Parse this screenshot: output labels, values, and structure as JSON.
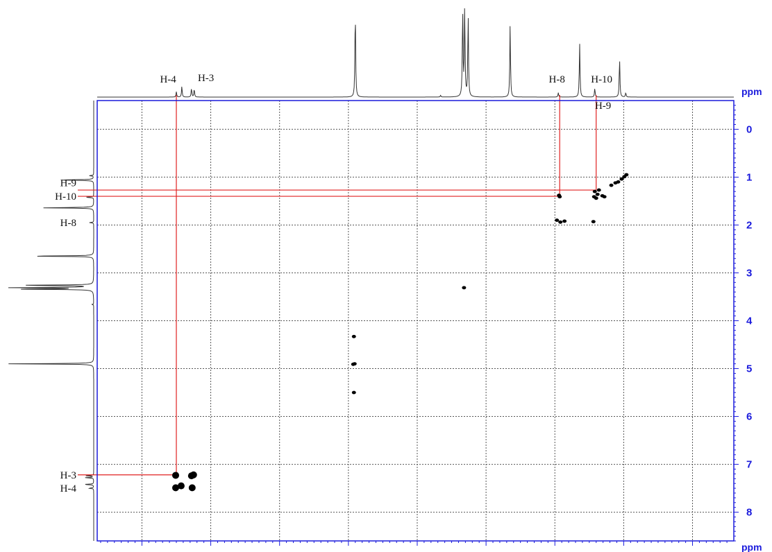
{
  "chart_data": {
    "type": "scatter",
    "subtype": "2D NMR COSY contour spectrum",
    "xlabel": "ppm",
    "ylabel": "ppm",
    "xlim": [
      8.65,
      -0.6
    ],
    "ylim": [
      8.6,
      -0.6
    ],
    "x_ticks": [
      "8",
      "7",
      "6",
      "5",
      "4",
      "3",
      "2",
      "1",
      "0"
    ],
    "y_ticks": [
      "0",
      "1",
      "2",
      "3",
      "4",
      "5",
      "6",
      "7",
      "8"
    ],
    "x_tick_values": [
      8,
      7,
      6,
      5,
      4,
      3,
      2,
      1,
      0
    ],
    "y_tick_values": [
      0,
      1,
      2,
      3,
      4,
      5,
      6,
      7,
      8
    ],
    "grid": true,
    "axis_color": "#1a1adc",
    "guide_color": "#e02020",
    "top_projection_labels": [
      {
        "text": "H-4",
        "ppm": 7.62
      },
      {
        "text": "H-3",
        "ppm": 7.07
      },
      {
        "text": "H-8",
        "ppm": 1.97
      },
      {
        "text": "H-10",
        "ppm": 1.32
      },
      {
        "text": "H-9",
        "ppm": 1.3
      }
    ],
    "left_projection_labels": [
      {
        "text": "H-9",
        "ppm": 1.12
      },
      {
        "text": "H-10",
        "ppm": 1.4
      },
      {
        "text": "H-8",
        "ppm": 1.95
      },
      {
        "text": "H-3",
        "ppm": 7.22
      },
      {
        "text": "H-4",
        "ppm": 7.5
      }
    ],
    "projection_peaks": [
      {
        "ppm": 7.5,
        "height": 0.06
      },
      {
        "ppm": 7.42,
        "height": 0.12
      },
      {
        "ppm": 7.28,
        "height": 0.1
      },
      {
        "ppm": 7.24,
        "height": 0.09
      },
      {
        "ppm": 4.9,
        "height": 1.0
      },
      {
        "ppm": 3.66,
        "height": 0.02
      },
      {
        "ppm": 3.34,
        "height": 1.0
      },
      {
        "ppm": 3.31,
        "height": 1.0
      },
      {
        "ppm": 3.26,
        "height": 0.92
      },
      {
        "ppm": 2.65,
        "height": 0.81
      },
      {
        "ppm": 1.95,
        "height": 0.05
      },
      {
        "ppm": 1.64,
        "height": 0.6
      },
      {
        "ppm": 1.42,
        "height": 0.1
      },
      {
        "ppm": 1.06,
        "height": 0.43
      },
      {
        "ppm": 0.97,
        "height": 0.05
      }
    ],
    "cross_peaks": [
      {
        "x": 7.51,
        "y": 7.23
      },
      {
        "x": 7.51,
        "y": 7.49
      },
      {
        "x": 7.43,
        "y": 7.45
      },
      {
        "x": 7.25,
        "y": 7.22
      },
      {
        "x": 7.28,
        "y": 7.24
      },
      {
        "x": 7.27,
        "y": 7.49
      },
      {
        "x": 4.92,
        "y": 4.33
      },
      {
        "x": 4.93,
        "y": 4.91
      },
      {
        "x": 4.91,
        "y": 4.9
      },
      {
        "x": 4.92,
        "y": 5.5
      },
      {
        "x": 3.32,
        "y": 3.31
      },
      {
        "x": 1.93,
        "y": 1.41
      },
      {
        "x": 1.94,
        "y": 1.38
      },
      {
        "x": 1.97,
        "y": 1.9
      },
      {
        "x": 1.92,
        "y": 1.94
      },
      {
        "x": 1.86,
        "y": 1.92
      },
      {
        "x": 1.44,
        "y": 1.93
      },
      {
        "x": 1.43,
        "y": 1.41
      },
      {
        "x": 1.4,
        "y": 1.44
      },
      {
        "x": 1.38,
        "y": 1.36
      },
      {
        "x": 1.42,
        "y": 1.3
      },
      {
        "x": 1.36,
        "y": 1.27
      },
      {
        "x": 1.31,
        "y": 1.39
      },
      {
        "x": 1.28,
        "y": 1.41
      },
      {
        "x": 1.18,
        "y": 1.17
      },
      {
        "x": 1.12,
        "y": 1.12
      },
      {
        "x": 1.08,
        "y": 1.1
      },
      {
        "x": 1.03,
        "y": 1.04
      },
      {
        "x": 0.99,
        "y": 0.99
      },
      {
        "x": 0.96,
        "y": 0.95
      }
    ],
    "guide_lines": [
      {
        "x": 7.5,
        "y": 7.22
      },
      {
        "x": 1.93,
        "y": 1.4
      },
      {
        "x": 1.4,
        "y": 1.27
      }
    ]
  }
}
